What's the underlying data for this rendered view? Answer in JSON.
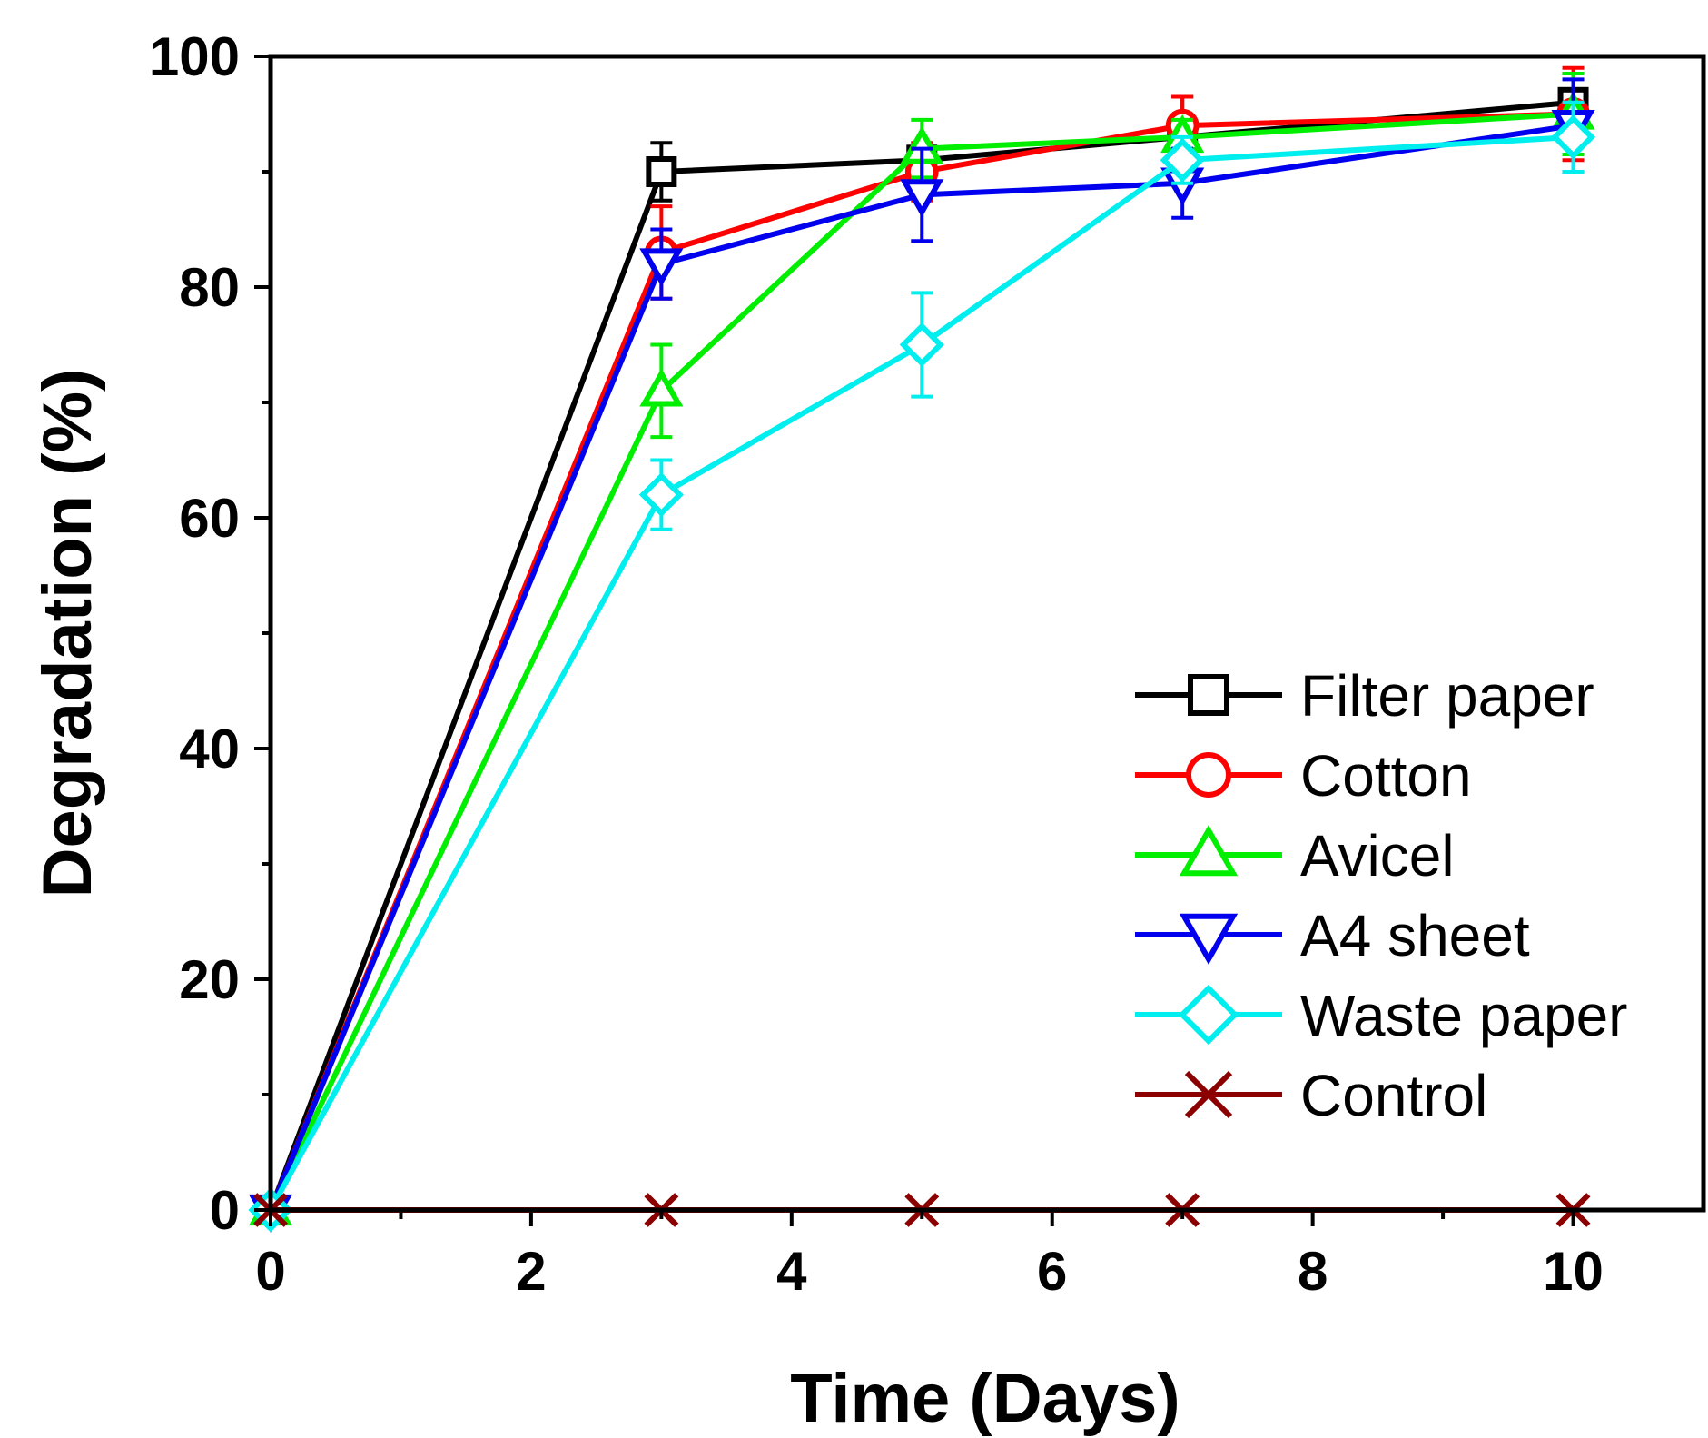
{
  "chart_data": {
    "type": "line",
    "title": "",
    "xlabel": "Time (Days)",
    "ylabel": "Degradation (%)",
    "xlim": [
      0,
      11
    ],
    "ylim": [
      0,
      100
    ],
    "xticks": [
      0,
      2,
      4,
      6,
      8,
      10
    ],
    "xtick_labels": [
      "0",
      "2",
      "4",
      "6",
      "8",
      "10"
    ],
    "yticks": [
      0,
      20,
      40,
      60,
      80,
      100
    ],
    "ytick_labels": [
      "0",
      "20",
      "40",
      "60",
      "80",
      "100"
    ],
    "grid": false,
    "legend_position": "bottom-right",
    "series": [
      {
        "name": "Filter paper",
        "color": "#000000",
        "marker": "square",
        "x": [
          0,
          3,
          5,
          7,
          10
        ],
        "y": [
          0,
          90,
          91,
          93,
          96
        ],
        "err": [
          0,
          2.5,
          1.0,
          3.5,
          2.5
        ]
      },
      {
        "name": "Cotton",
        "color": "#ff0000",
        "marker": "circle",
        "x": [
          0,
          3,
          5,
          7,
          10
        ],
        "y": [
          0,
          83,
          90,
          94,
          95
        ],
        "err": [
          0,
          4.0,
          2.5,
          2.5,
          4.0
        ]
      },
      {
        "name": "Avicel",
        "color": "#00ee00",
        "marker": "triangle-up",
        "x": [
          0,
          3,
          5,
          7,
          10
        ],
        "y": [
          0,
          71,
          92,
          93,
          95
        ],
        "err": [
          0,
          4.0,
          2.5,
          1.5,
          3.5
        ]
      },
      {
        "name": "A4 sheet",
        "color": "#0000ee",
        "marker": "triangle-down",
        "x": [
          0,
          3,
          5,
          7,
          10
        ],
        "y": [
          0,
          82,
          88,
          89,
          94
        ],
        "err": [
          0,
          3.0,
          4.0,
          3.0,
          4.0
        ]
      },
      {
        "name": "Waste paper",
        "color": "#00eeee",
        "marker": "diamond",
        "x": [
          0,
          3,
          5,
          7,
          10
        ],
        "y": [
          0,
          62,
          75,
          91,
          93
        ],
        "err": [
          0,
          3.0,
          4.5,
          2.0,
          3.0
        ]
      },
      {
        "name": "Control",
        "color": "#8b0000",
        "marker": "x",
        "x": [
          0,
          3,
          5,
          7,
          10
        ],
        "y": [
          0,
          0,
          0,
          0,
          0
        ],
        "err": [
          0,
          0,
          0,
          0,
          0
        ]
      }
    ]
  }
}
